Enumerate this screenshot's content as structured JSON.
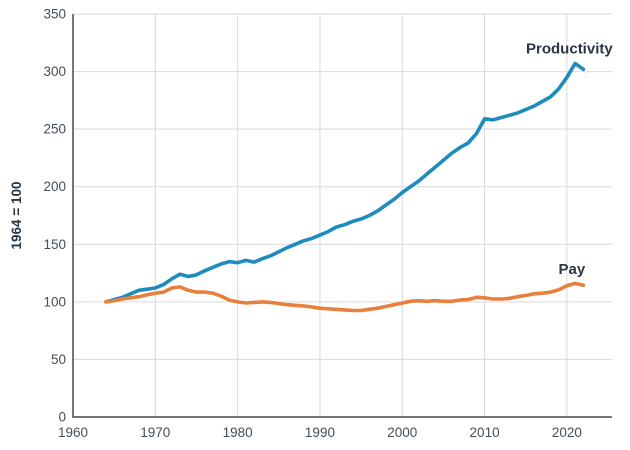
{
  "chart_data": {
    "type": "line",
    "title": "",
    "xlabel": "",
    "ylabel": "1964 = 100",
    "grid": true,
    "legend_position": "inline-annotations",
    "xlim": [
      1960,
      2025.5
    ],
    "ylim": [
      0,
      350
    ],
    "x_ticks": [
      1960,
      1970,
      1980,
      1990,
      2000,
      2010,
      2020
    ],
    "y_ticks": [
      0,
      50,
      100,
      150,
      200,
      250,
      300,
      350
    ],
    "x": [
      1964,
      1965,
      1966,
      1967,
      1968,
      1969,
      1970,
      1971,
      1972,
      1973,
      1974,
      1975,
      1976,
      1977,
      1978,
      1979,
      1980,
      1981,
      1982,
      1983,
      1984,
      1985,
      1986,
      1987,
      1988,
      1989,
      1990,
      1991,
      1992,
      1993,
      1994,
      1995,
      1996,
      1997,
      1998,
      1999,
      2000,
      2001,
      2002,
      2003,
      2004,
      2005,
      2006,
      2007,
      2008,
      2009,
      2010,
      2011,
      2012,
      2013,
      2014,
      2015,
      2016,
      2017,
      2018,
      2019,
      2020,
      2021,
      2022
    ],
    "series": [
      {
        "name": "Productivity",
        "color": "#1d8cbd",
        "values": [
          100,
          102,
          104,
          107,
          110,
          111,
          112,
          115,
          120,
          124,
          122,
          123.5,
          127,
          130,
          133,
          135,
          134,
          136,
          134.5,
          137.5,
          140,
          143.5,
          147,
          150,
          153,
          155,
          158,
          161,
          165,
          167,
          170,
          172,
          175,
          179,
          184,
          189,
          195,
          200,
          205,
          211,
          217,
          223,
          229,
          234,
          238,
          246,
          259,
          258,
          260,
          262,
          264,
          267,
          270,
          274,
          278,
          285,
          295,
          307,
          302
        ]
      },
      {
        "name": "Pay",
        "color": "#e7803a",
        "values": [
          100,
          101,
          102.5,
          103.5,
          104.5,
          106,
          107.5,
          108.5,
          112,
          113,
          110,
          108.5,
          108.5,
          107.5,
          105,
          101.5,
          100,
          99,
          99.5,
          100,
          99.5,
          98.5,
          97.5,
          97,
          96.5,
          95.5,
          94.5,
          94,
          93.5,
          93,
          92.5,
          92.5,
          93.5,
          94.5,
          96,
          97.5,
          99,
          100.5,
          101,
          100.5,
          101,
          100.5,
          100.5,
          101.5,
          102,
          104,
          103.5,
          102.5,
          102.5,
          103,
          104.5,
          105.5,
          107,
          107.5,
          108.5,
          110.5,
          114,
          116,
          114.5
        ]
      }
    ],
    "annotations": [
      {
        "text": "Productivity",
        "year": 2020.3,
        "value": 320,
        "series": "Productivity"
      },
      {
        "text": "Pay",
        "year": 2020.6,
        "value": 128.5,
        "series": "Pay"
      }
    ]
  },
  "style_colors": {
    "gridline": "#d9d9d9",
    "spine": "#5c6166",
    "tick_text": "#454d55",
    "label_text": "#2c3541"
  }
}
